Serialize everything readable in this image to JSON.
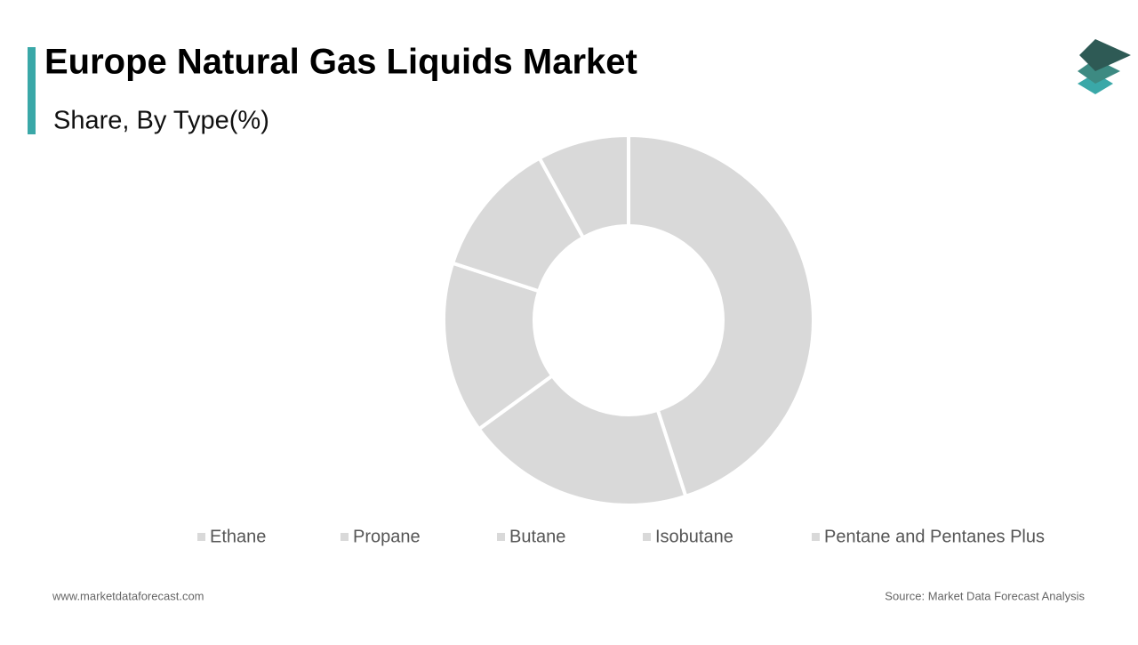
{
  "chart_data": {
    "type": "donut",
    "title": "Europe Natural Gas Liquids Market",
    "subtitle": "Share, By Type(%)",
    "categories": [
      "Ethane",
      "Propane",
      "Butane",
      "Isobutane",
      "Pentane and Pentanes Plus"
    ],
    "values": [
      45,
      20,
      15,
      12,
      8
    ],
    "colors": [
      "#d9d9d9",
      "#d9d9d9",
      "#d9d9d9",
      "#d9d9d9",
      "#d9d9d9"
    ],
    "legend": "bottom"
  },
  "footer": {
    "website": "www.marketdataforecast.com",
    "source": "Source: Market Data Forecast Analysis"
  }
}
